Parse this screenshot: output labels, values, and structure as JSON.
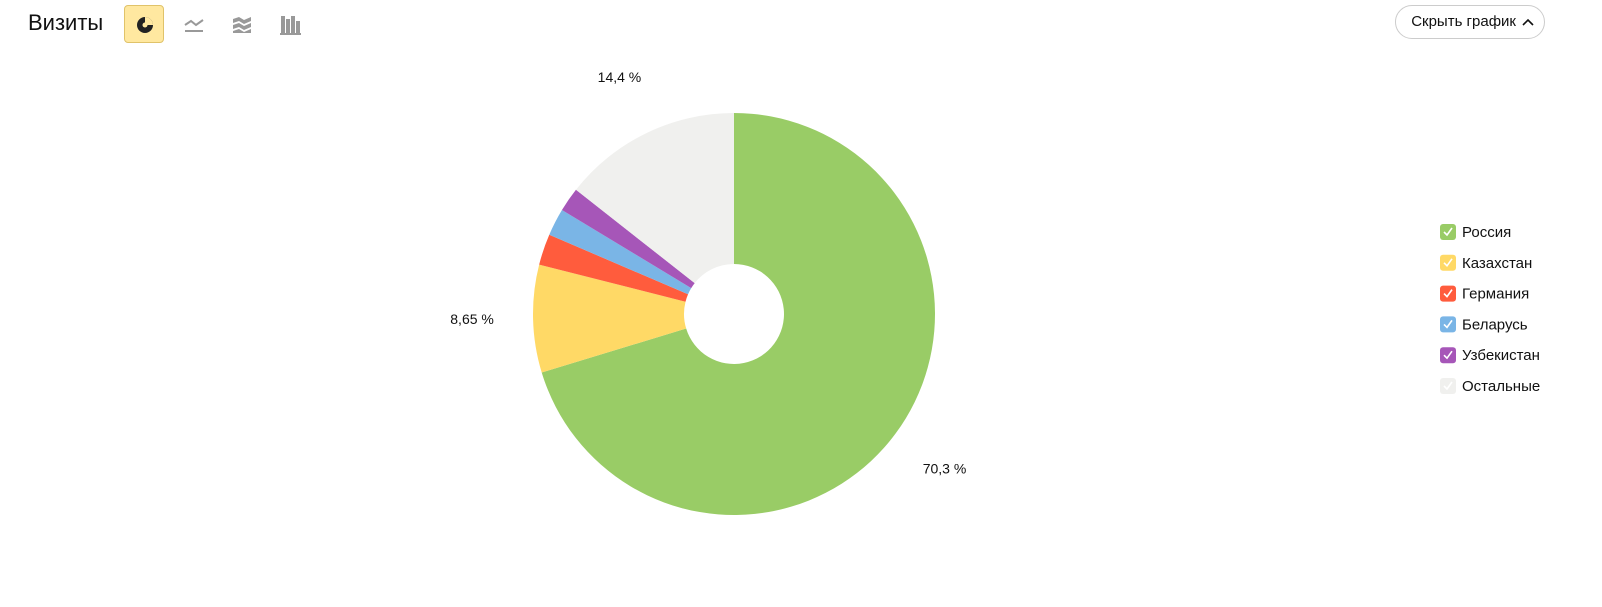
{
  "header": {
    "title": "Визиты",
    "button": "Скрыть график"
  },
  "chart_data": {
    "type": "pie",
    "donut": true,
    "categories": [
      "Россия",
      "Казахстан",
      "Германия",
      "Беларусь",
      "Узбекистан",
      "Остальные"
    ],
    "values": [
      70.3,
      8.65,
      2.5,
      2.2,
      1.95,
      14.4
    ],
    "value_labels": [
      "70,3 %",
      "8,65 %",
      null,
      null,
      null,
      "14,4 %"
    ],
    "colors": [
      "#99cc66",
      "#ffd966",
      "#ff5c3d",
      "#7ab5e6",
      "#a656b8",
      "#f0f0ee"
    ],
    "legend": "right"
  }
}
